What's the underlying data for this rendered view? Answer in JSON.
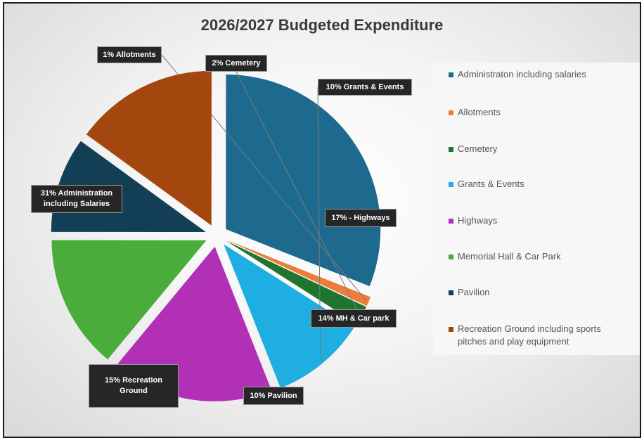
{
  "chart_data": {
    "type": "pie",
    "title": "2026/2027 Budgeted Expenditure",
    "exploded": true,
    "legend_position": "right",
    "series": [
      {
        "name": "Administraton including salaries",
        "value": 31,
        "color": "#1e6a8e",
        "data_label": "31% Administration including Salaries"
      },
      {
        "name": "Allotments",
        "value": 1,
        "color": "#ea7d38",
        "data_label": "1% Allotments"
      },
      {
        "name": "Cemetery",
        "value": 2,
        "color": "#1f7530",
        "data_label": "2% Cemetery"
      },
      {
        "name": "Grants & Events",
        "value": 10,
        "color": "#1eaee2",
        "data_label": "10% Grants & Events"
      },
      {
        "name": "Highways",
        "value": 17,
        "color": "#b230b6",
        "data_label": "17% - Highways"
      },
      {
        "name": "Memorial Hall & Car Park",
        "value": 14,
        "color": "#4aac3a",
        "data_label": "14% MH & Car park"
      },
      {
        "name": "Pavilion",
        "value": 10,
        "color": "#123f56",
        "data_label": "10% Pavilion"
      },
      {
        "name": "Recreation Ground including sports pitches and play equipment",
        "value": 15,
        "color": "#a3470f",
        "data_label": "15% Recreation Ground"
      }
    ]
  }
}
